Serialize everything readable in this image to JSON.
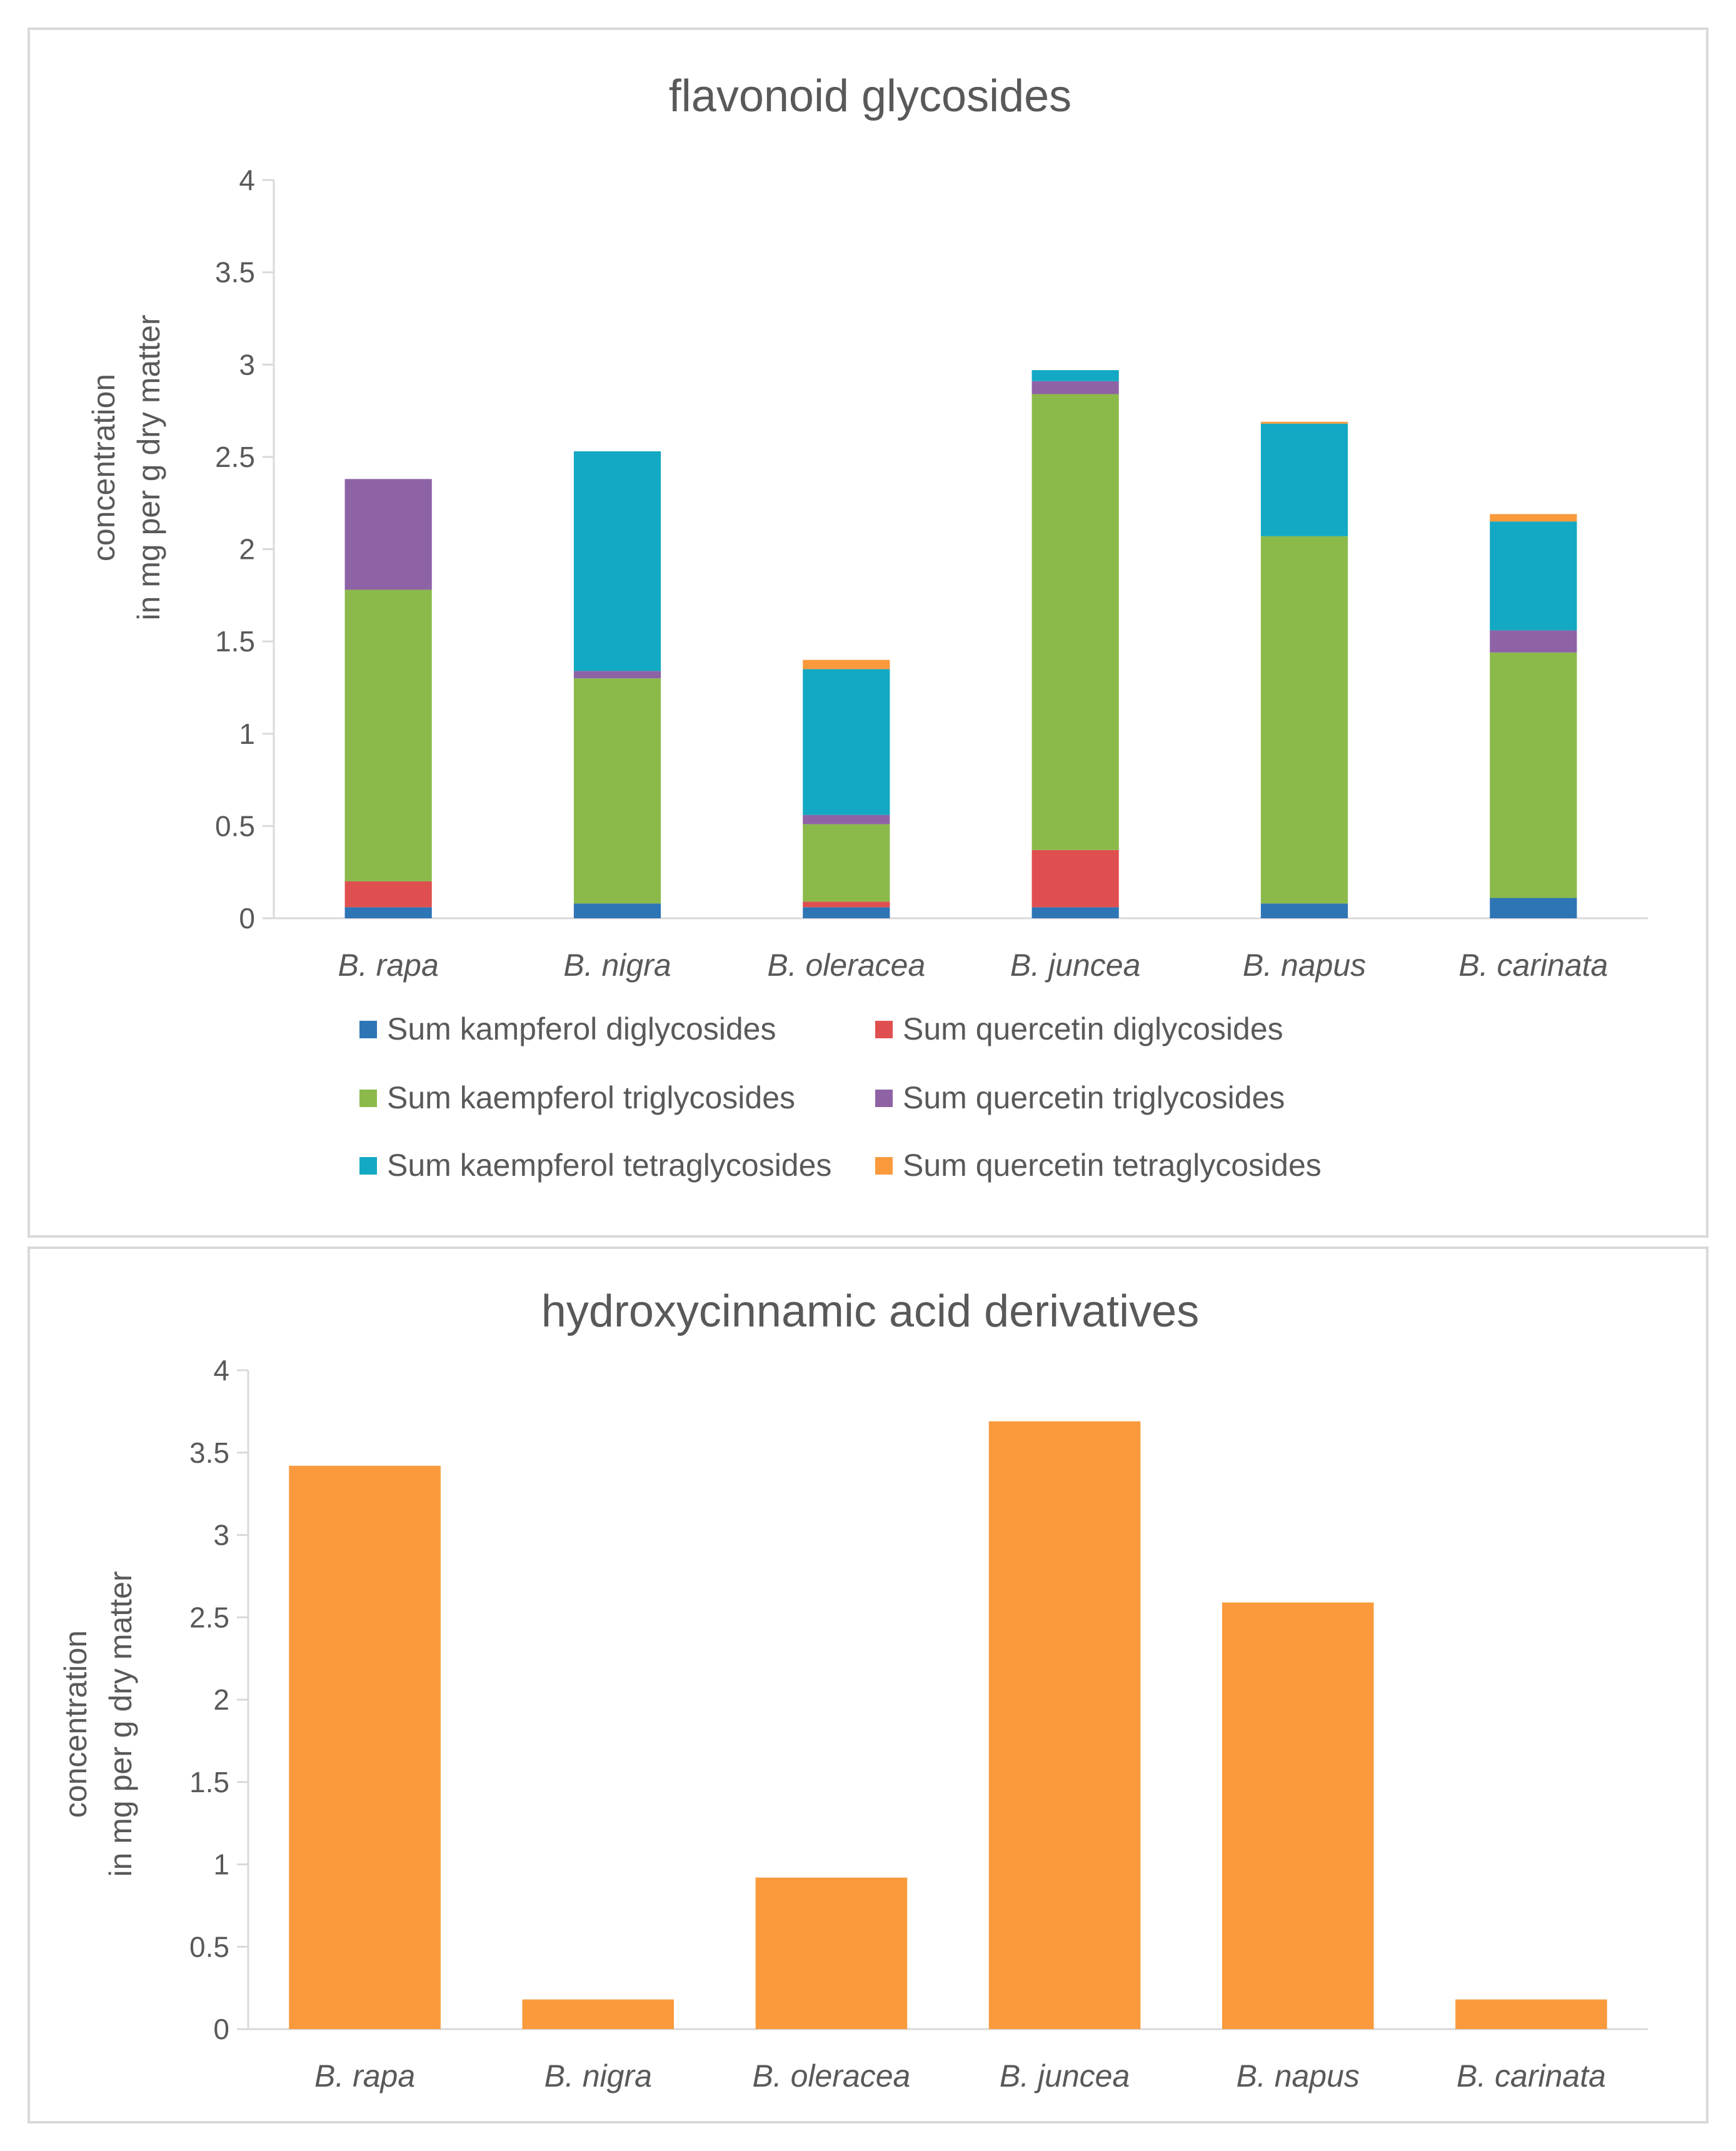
{
  "chart_data": [
    {
      "type": "bar",
      "stacked": true,
      "title": "flavonoid glycosides",
      "ylabel_lines": [
        "concentration",
        "in mg per g dry matter"
      ],
      "xlabel": "",
      "ylim": [
        0,
        4
      ],
      "yticks": [
        "0",
        "0.5",
        "1",
        "1.5",
        "2",
        "2.5",
        "3",
        "3.5",
        "4"
      ],
      "categories": [
        "B. rapa",
        "B. nigra",
        "B. oleracea",
        "B. juncea",
        "B. napus",
        "B. carinata"
      ],
      "legend_position": "bottom",
      "series": [
        {
          "name": "Sum kampferol diglycosides",
          "color": "#2E75B6",
          "values": [
            0.06,
            0.08,
            0.06,
            0.06,
            0.08,
            0.11
          ]
        },
        {
          "name": "Sum quercetin diglycosides",
          "color": "#E04F4F",
          "values": [
            0.14,
            0.0,
            0.03,
            0.31,
            0.0,
            0.0
          ]
        },
        {
          "name": "Sum kaempferol triglycosides",
          "color": "#8BBA4B",
          "values": [
            1.58,
            1.22,
            0.42,
            2.47,
            1.99,
            1.33
          ]
        },
        {
          "name": "Sum quercetin triglycosides",
          "color": "#8E63A6",
          "values": [
            0.6,
            0.04,
            0.05,
            0.07,
            0.0,
            0.12
          ]
        },
        {
          "name": "Sum kaempferol tetraglycosides",
          "color": "#13A9C4",
          "values": [
            0.0,
            1.19,
            0.79,
            0.06,
            0.61,
            0.59
          ]
        },
        {
          "name": "Sum quercetin tetraglycosides",
          "color": "#FA9A3C",
          "values": [
            0.0,
            0.0,
            0.05,
            0.0,
            0.01,
            0.04
          ]
        }
      ]
    },
    {
      "type": "bar",
      "stacked": false,
      "title": "hydroxycinnamic acid derivatives",
      "ylabel_lines": [
        "concentration",
        "in mg per g dry matter"
      ],
      "xlabel": "",
      "ylim": [
        0,
        4
      ],
      "yticks": [
        "0",
        "0.5",
        "1",
        "1.5",
        "2",
        "2.5",
        "3",
        "3.5",
        "4"
      ],
      "categories": [
        "B. rapa",
        "B. nigra",
        "B. oleracea",
        "B. juncea",
        "B. napus",
        "B. carinata"
      ],
      "color": "#FA9A3C",
      "values": [
        3.42,
        0.18,
        0.92,
        3.69,
        2.59,
        0.18
      ]
    }
  ]
}
